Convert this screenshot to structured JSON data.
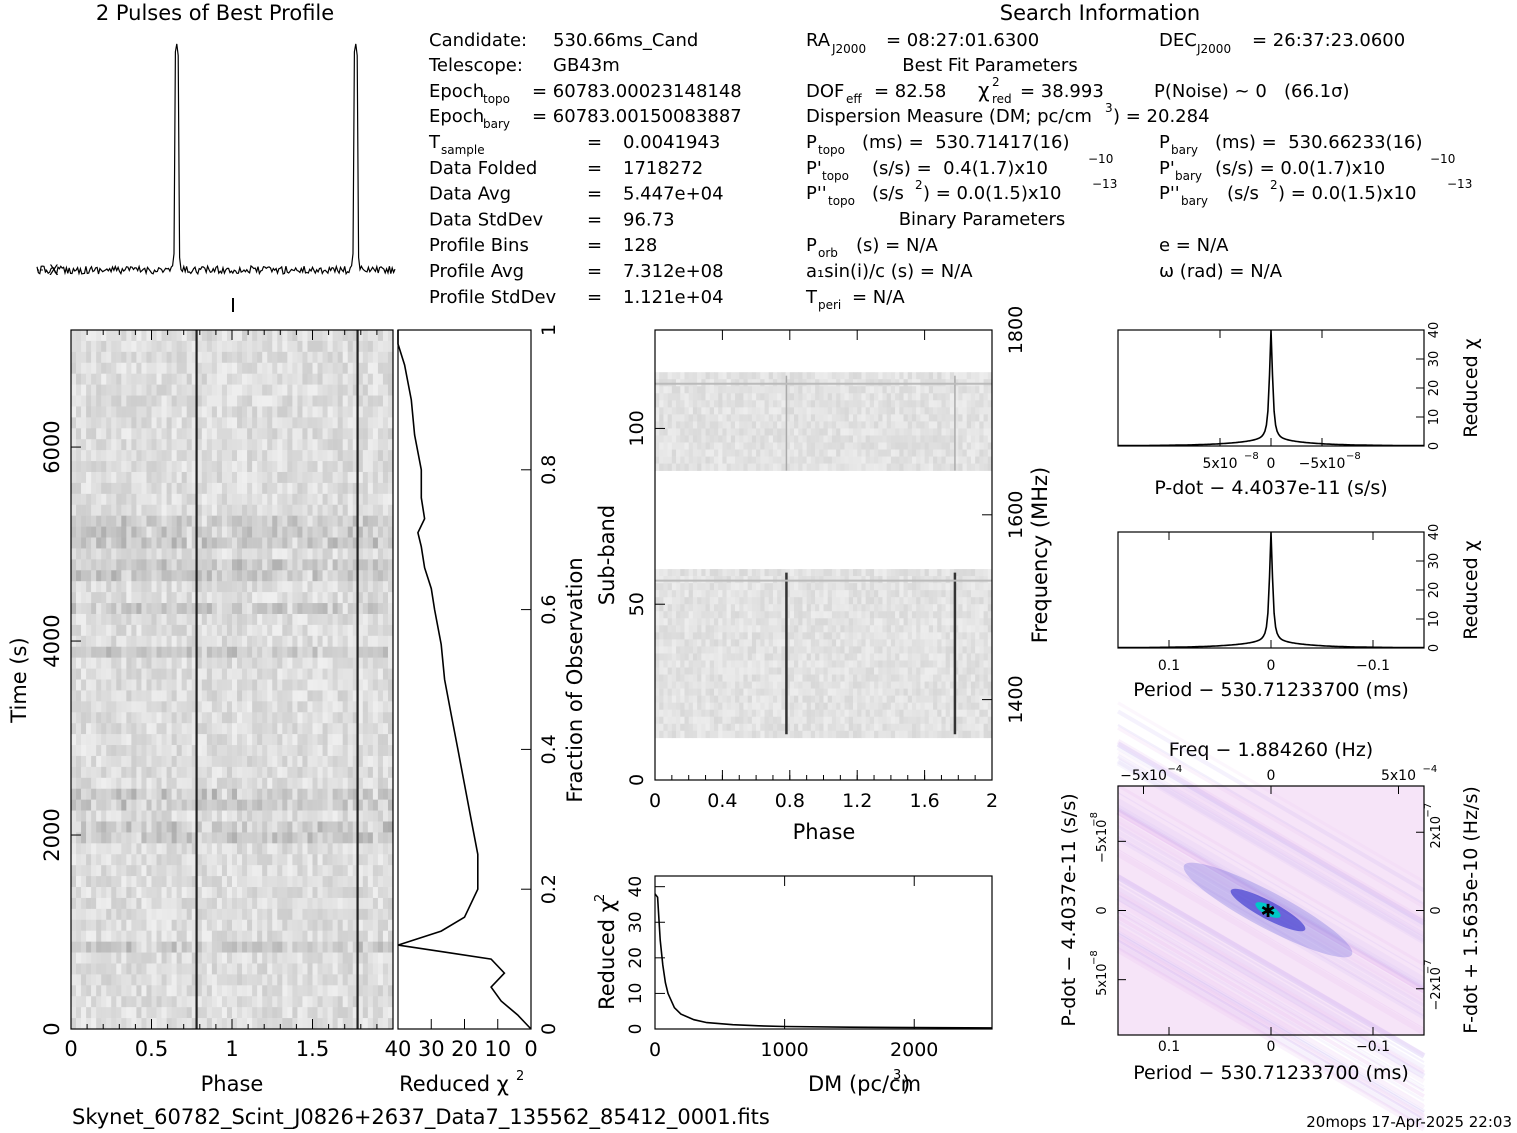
{
  "header": {
    "profile_title": "2 Pulses of Best Profile",
    "search_title": "Search Information",
    "footer_file": "Skynet_60782_Scint_J0826+2637_Data7_135562_85412_0001.fits",
    "footer_stamp": "20mops 17-Apr-2025 22:03"
  },
  "info": {
    "candidate": {
      "label": "Candidate:",
      "value": "530.66ms_Cand"
    },
    "telescope": {
      "label": "Telescope:",
      "value": "GB43m"
    },
    "epoch_topo": {
      "label": "Epoch",
      "sub": "topo",
      "value": "= 60783.00023148148"
    },
    "epoch_bary": {
      "label": "Epoch",
      "sub": "bary",
      "value": "= 60783.00150083887"
    },
    "rows": [
      {
        "label": "T",
        "sub": "sample",
        "value": "0.0041943"
      },
      {
        "label": "Data Folded",
        "sub": "",
        "value": "1718272"
      },
      {
        "label": "Data Avg",
        "sub": "",
        "value": "5.447e+04"
      },
      {
        "label": "Data StdDev",
        "sub": "",
        "value": "96.73"
      },
      {
        "label": "Profile Bins",
        "sub": "",
        "value": "128"
      },
      {
        "label": "Profile Avg",
        "sub": "",
        "value": "7.312e+08"
      },
      {
        "label": "Profile StdDev",
        "sub": "",
        "value": "1.121e+04"
      }
    ],
    "eq": "=",
    "ra": {
      "label": "RA",
      "sub": "J2000",
      "value": "= 08:27:01.6300"
    },
    "dec": {
      "label": "DEC",
      "sub": "J2000",
      "value": "= 26:37:23.0600"
    },
    "best_fit_title": "Best Fit Parameters",
    "dof": {
      "label": "DOF",
      "sub": "eff",
      "value": "= 82.58"
    },
    "chi": {
      "label": "χ",
      "sup": "2",
      "sub": "red",
      "value": "= 38.993"
    },
    "pnoise": "P(Noise) ~ 0   (66.1σ)",
    "dm_line": {
      "prefix": "Dispersion Measure (DM; pc/cm",
      "sup": "3",
      "suffix": ") = 20.284"
    },
    "ptopo": {
      "label": "P",
      "sub": "topo",
      "value": "(ms) =  530.71417(16)"
    },
    "pbary": {
      "label": "P",
      "sub": "bary",
      "value": "(ms) =  530.66233(16)"
    },
    "pdtopo": {
      "label": "P'",
      "sub": "topo",
      "value": "(s/s) =  0.4(1.7)x10",
      "exp": "−10"
    },
    "pdbary": {
      "label": "P'",
      "sub": "bary",
      "value": "(s/s) = 0.0(1.7)x10",
      "exp": "−10"
    },
    "pddtopo": {
      "label": "P''",
      "sub": "topo",
      "value": "(s/s",
      "sup": "2",
      "value2": ") = 0.0(1.5)x10",
      "exp": "−13"
    },
    "pddbary": {
      "label": "P''",
      "sub": "bary",
      "value": "(s/s",
      "sup": "2",
      "value2": ") = 0.0(1.5)x10",
      "exp": "−13"
    },
    "binary_title": "Binary Parameters",
    "porb": {
      "label": "P",
      "sub": "orb",
      "value": "(s) = N/A"
    },
    "a1": "a₁sin(i)/c (s) = N/A",
    "tperi": {
      "label": "T",
      "sub": "peri",
      "value": "= N/A"
    },
    "ecc": "e = N/A",
    "omega": "ω (rad) = N/A"
  },
  "chart_data": [
    {
      "id": "profile",
      "type": "line",
      "title": "2 Pulses of Best Profile",
      "x_range": [
        0,
        2
      ],
      "peaks_phase": [
        0.78,
        1.78
      ],
      "baseline_note": "flat noisy baseline with two narrow pulses"
    },
    {
      "id": "time-phase",
      "type": "heatmap",
      "xlabel": "Phase",
      "ylabel": "Time (s)",
      "x_ticks": [
        "0",
        "0.5",
        "1",
        "1.5"
      ],
      "y_ticks": [
        "0",
        "2000",
        "4000",
        "6000"
      ],
      "xlim": [
        0,
        2
      ],
      "ylim": [
        0,
        7207
      ],
      "pulse_phase": [
        0.78,
        1.78
      ]
    },
    {
      "id": "chi-vs-time",
      "type": "line",
      "xlabel": "Reduced χ",
      "xlabel_sup": "2",
      "ylabel": "Fraction of Observation",
      "x_ticks": [
        "40",
        "30",
        "20",
        "10",
        "0"
      ],
      "y_ticks": [
        "0",
        "0.2",
        "0.4",
        "0.6",
        "0.8",
        "1"
      ],
      "xlim": [
        40,
        0
      ],
      "ylim": [
        0,
        1
      ],
      "points": [
        [
          0,
          0
        ],
        [
          4,
          0.02
        ],
        [
          9,
          0.04
        ],
        [
          12,
          0.06
        ],
        [
          8,
          0.08
        ],
        [
          12,
          0.1
        ],
        [
          26,
          0.11
        ],
        [
          40,
          0.12
        ],
        [
          27,
          0.14
        ],
        [
          20,
          0.16
        ],
        [
          16,
          0.2
        ],
        [
          16,
          0.25
        ],
        [
          18,
          0.3
        ],
        [
          20,
          0.35
        ],
        [
          22,
          0.4
        ],
        [
          24,
          0.45
        ],
        [
          26,
          0.5
        ],
        [
          27,
          0.55
        ],
        [
          29,
          0.6
        ],
        [
          30,
          0.63
        ],
        [
          32,
          0.66
        ],
        [
          33,
          0.69
        ],
        [
          34,
          0.71
        ],
        [
          32,
          0.73
        ],
        [
          33,
          0.76
        ],
        [
          33,
          0.8
        ],
        [
          35,
          0.85
        ],
        [
          36,
          0.9
        ],
        [
          38,
          0.95
        ],
        [
          40,
          0.98
        ],
        [
          40,
          1
        ]
      ]
    },
    {
      "id": "subband-phase",
      "type": "heatmap",
      "xlabel": "Phase",
      "ylabel": "Sub-band",
      "ylabel2": "Frequency (MHz)",
      "x_ticks": [
        "0",
        "0.4",
        "0.8",
        "1.2",
        "1.6",
        "2"
      ],
      "y_ticks": [
        "0",
        "50",
        "100"
      ],
      "y2_ticks": [
        "1400",
        "1600",
        "1800"
      ],
      "xlim": [
        0,
        2
      ],
      "ylim": [
        0,
        128
      ],
      "band_ranges": [
        [
          13,
          59
        ],
        [
          88,
          115
        ]
      ],
      "pulse_phase": [
        0.78,
        1.78
      ]
    },
    {
      "id": "chi-vs-dm",
      "type": "line",
      "xlabel": "DM (pc/cm",
      "xlabel_sup": "3",
      "xlabel_suffix": ")",
      "ylabel": "Reduced χ",
      "ylabel_sup": "2",
      "x_ticks": [
        "0",
        "1000",
        "2000"
      ],
      "y_ticks": [
        "0",
        "10",
        "20",
        "30",
        "40"
      ],
      "xlim": [
        0,
        2600
      ],
      "ylim": [
        0,
        43
      ],
      "points": [
        [
          0,
          38
        ],
        [
          20,
          37
        ],
        [
          40,
          25
        ],
        [
          60,
          18
        ],
        [
          80,
          13
        ],
        [
          100,
          10
        ],
        [
          150,
          6
        ],
        [
          200,
          4.2
        ],
        [
          300,
          2.6
        ],
        [
          400,
          1.8
        ],
        [
          600,
          1.2
        ],
        [
          800,
          0.9
        ],
        [
          1000,
          0.7
        ],
        [
          1500,
          0.5
        ],
        [
          2000,
          0.4
        ],
        [
          2600,
          0.3
        ]
      ]
    },
    {
      "id": "chi-vs-pdot",
      "type": "line",
      "xlabel": "P-dot − 4.4037e-11 (s/s)",
      "ylabel": "Reduced χ",
      "ylabel_sup": "2",
      "x_ticks": [
        "5x10",
        "0",
        "−5x10"
      ],
      "x_tick_exp": "−8",
      "y_ticks": [
        "0",
        "10",
        "20",
        "30",
        "40"
      ],
      "xlim": [
        1.5e-07,
        -1.5e-07
      ],
      "ylim": [
        0,
        40
      ],
      "peak": 38
    },
    {
      "id": "chi-vs-period",
      "type": "line",
      "xlabel": "Period − 530.71233700 (ms)",
      "ylabel": "Reduced χ",
      "ylabel_sup": "2",
      "x_ticks": [
        "0.1",
        "0",
        "−0.1"
      ],
      "y_ticks": [
        "0",
        "10",
        "20",
        "30",
        "40"
      ],
      "xlim": [
        0.15,
        -0.15
      ],
      "ylim": [
        0,
        40
      ],
      "peak": 38
    },
    {
      "id": "period-pdot",
      "type": "heatmap",
      "title": "Freq − 1.884260 (Hz)",
      "xlabel": "Period − 530.71233700 (ms)",
      "ylabel": "P-dot − 4.4037e-11 (s/s)",
      "ylabel2": "F-dot + 1.5635e-10 (Hz/s)",
      "x_ticks": [
        "0.1",
        "0",
        "−0.1"
      ],
      "top_ticks": [
        "−5x10",
        "0",
        "5x10"
      ],
      "top_exp": "−4",
      "y_ticks": [
        "−5x10",
        "0",
        "5x10"
      ],
      "y_exp": "−8",
      "y2_ticks": [
        "2x10",
        "0",
        "−2x10"
      ],
      "y2_exp": "−7",
      "colors": {
        "low": "#ffffff",
        "mid": "#e6b8f0",
        "high": "#1e1ec8",
        "peak": "#00c8c8"
      }
    }
  ]
}
